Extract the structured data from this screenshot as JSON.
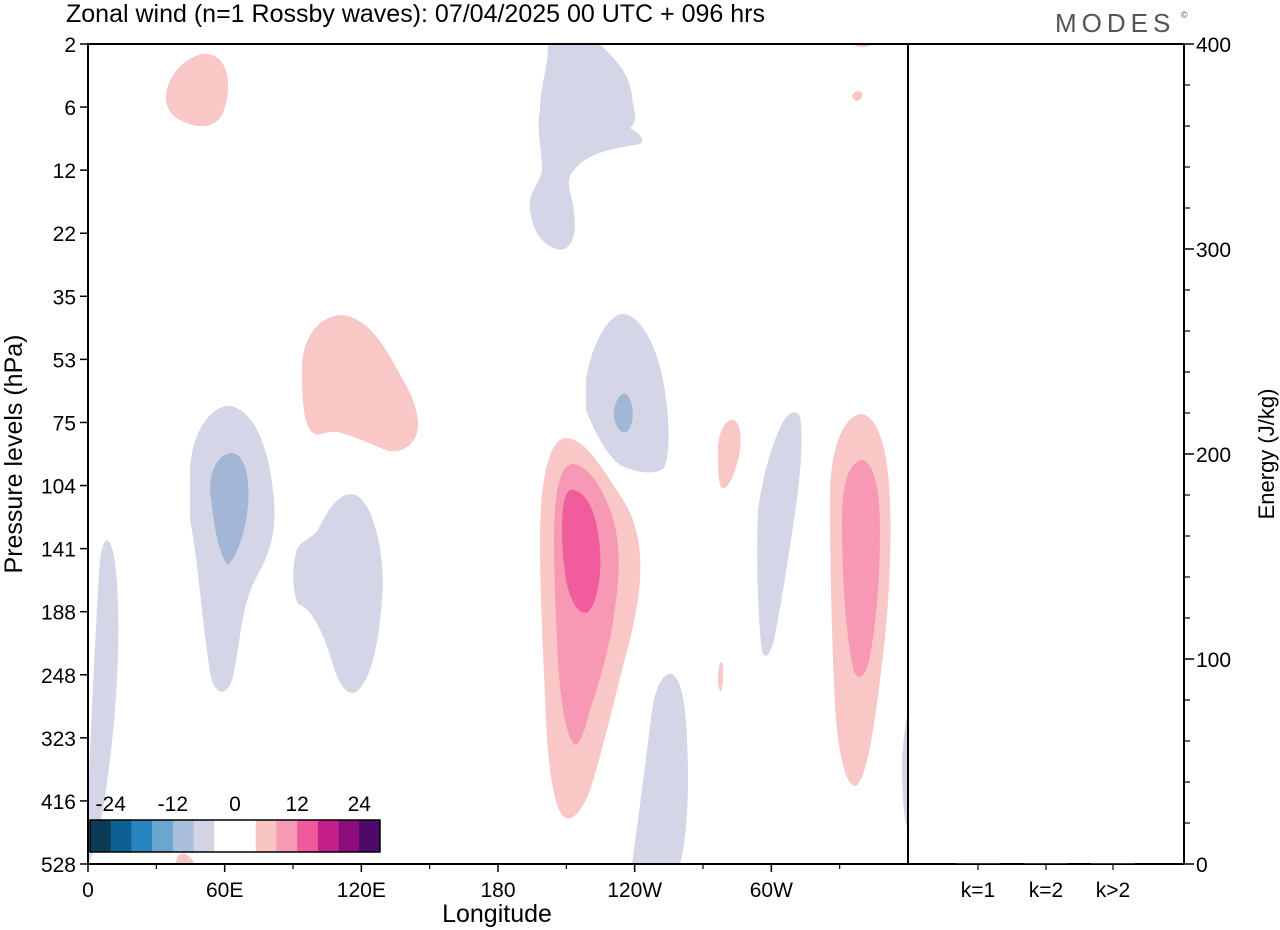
{
  "header": {
    "title": "Zonal wind (n=1 Rossby waves):  07/04/2025  00 UTC  + 096 hrs",
    "brand": "MODES",
    "brand_mark": "©"
  },
  "chart_data": [
    {
      "type": "heatmap",
      "xlabel": "Longitude",
      "ylabel": "Pressure levels (hPa)",
      "x_ticks": [
        "0",
        "60E",
        "120E",
        "180",
        "120W",
        "60W"
      ],
      "x_tick_values": [
        0,
        60,
        120,
        180,
        240,
        300
      ],
      "xlim": [
        0,
        360
      ],
      "y_ticks": [
        "2",
        "6",
        "12",
        "22",
        "35",
        "53",
        "75",
        "104",
        "141",
        "188",
        "248",
        "323",
        "416",
        "528"
      ],
      "colorbar": {
        "labels": [
          "-24",
          "-12",
          "0",
          "12",
          "24"
        ],
        "label_values": [
          -24,
          -12,
          0,
          12,
          24
        ],
        "colors": [
          "#0d3a55",
          "#0f5f95",
          "#2a84c0",
          "#6aa6d0",
          "#a8bedb",
          "#d3d5e6",
          "#ffffff",
          "#ffffff",
          "#f9c5c4",
          "#f79ab5",
          "#ee5a9a",
          "#c41f8a",
          "#8e0d7e",
          "#4d0a6a"
        ]
      },
      "levels_colors": {
        "neg_1": "#d4d6e8",
        "neg_2": "#a3b6d6",
        "pos_1": "#f9c7c6",
        "pos_2": "#f799b4",
        "pos_3": "#f05c9c"
      }
    },
    {
      "type": "bar",
      "ylabel": "Energy (J/kg)",
      "categories": [
        "k=1",
        "k=2",
        "k>2"
      ],
      "values": [
        0.5,
        0.3,
        0.3
      ],
      "ylim": [
        0,
        400
      ],
      "y_ticks": [
        "0",
        "100",
        "200",
        "300",
        "400"
      ],
      "y_tick_values": [
        0,
        100,
        200,
        300,
        400
      ]
    }
  ]
}
